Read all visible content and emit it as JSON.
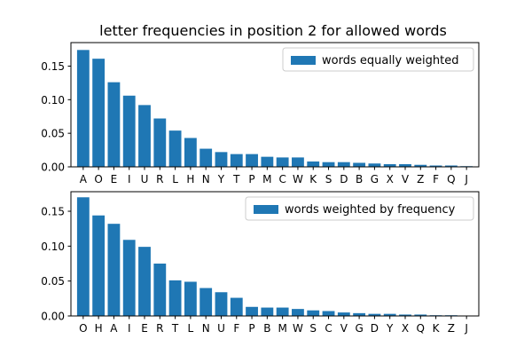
{
  "figure": {
    "title": "letter frequencies in position 2 for allowed words"
  },
  "chart_data": [
    {
      "type": "bar",
      "title": "letter frequencies in position 2 for allowed words",
      "xlabel": "",
      "ylabel": "",
      "ylim": [
        0,
        0.185
      ],
      "yticks": [
        0.0,
        0.05,
        0.1,
        0.15
      ],
      "ytick_labels": [
        "0.00",
        "0.05",
        "0.10",
        "0.15"
      ],
      "legend": "top-right",
      "grid": false,
      "color": "#1f77b4",
      "categories": [
        "A",
        "O",
        "E",
        "I",
        "U",
        "R",
        "L",
        "H",
        "N",
        "Y",
        "T",
        "P",
        "M",
        "C",
        "W",
        "K",
        "S",
        "D",
        "B",
        "G",
        "X",
        "V",
        "Z",
        "F",
        "Q",
        "J"
      ],
      "series": [
        {
          "name": "words equally weighted",
          "values": [
            0.174,
            0.161,
            0.126,
            0.106,
            0.092,
            0.072,
            0.054,
            0.043,
            0.027,
            0.022,
            0.019,
            0.019,
            0.015,
            0.014,
            0.014,
            0.008,
            0.007,
            0.007,
            0.006,
            0.005,
            0.004,
            0.004,
            0.003,
            0.002,
            0.002,
            0.001
          ]
        }
      ]
    },
    {
      "type": "bar",
      "title": "",
      "xlabel": "",
      "ylabel": "",
      "ylim": [
        0,
        0.178
      ],
      "yticks": [
        0.0,
        0.05,
        0.1,
        0.15
      ],
      "ytick_labels": [
        "0.00",
        "0.05",
        "0.10",
        "0.15"
      ],
      "legend": "top-right",
      "grid": false,
      "color": "#1f77b4",
      "categories": [
        "O",
        "H",
        "A",
        "I",
        "E",
        "R",
        "T",
        "L",
        "N",
        "U",
        "F",
        "P",
        "B",
        "M",
        "W",
        "S",
        "C",
        "V",
        "G",
        "D",
        "Y",
        "X",
        "Q",
        "K",
        "Z",
        "J"
      ],
      "series": [
        {
          "name": "words weighted by frequency",
          "values": [
            0.17,
            0.144,
            0.132,
            0.109,
            0.099,
            0.075,
            0.051,
            0.049,
            0.04,
            0.034,
            0.026,
            0.013,
            0.012,
            0.012,
            0.01,
            0.008,
            0.007,
            0.005,
            0.004,
            0.003,
            0.003,
            0.002,
            0.002,
            0.001,
            0.001,
            0.0005
          ]
        }
      ]
    }
  ]
}
